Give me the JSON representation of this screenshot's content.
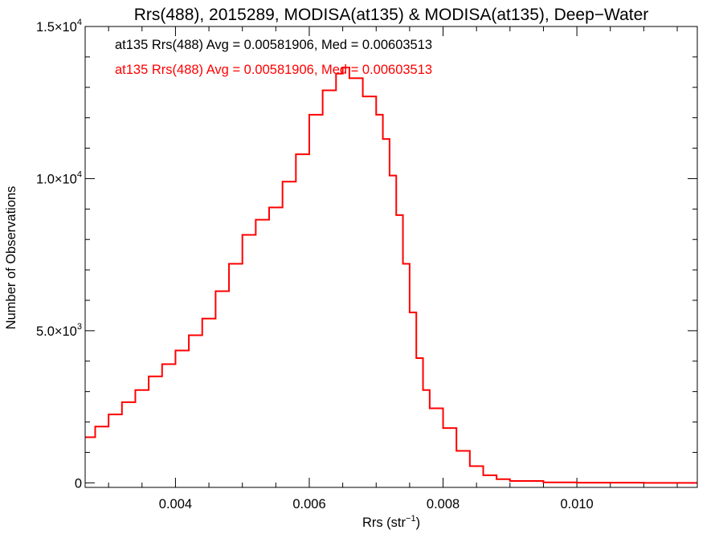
{
  "chart_data": {
    "type": "line",
    "title": "Rrs(488), 2015289, MODISA(at135) & MODISA(at135), Deep−Water",
    "xlabel": "Rrs (str",
    "xlabel_sup": "−1",
    "xlabel_end": ")",
    "ylabel": "Number of Observations",
    "xlim": [
      0.00265,
      0.0118
    ],
    "ylim": [
      -150,
      15000
    ],
    "x_ticks": [
      {
        "value": 0.004,
        "label": "0.004"
      },
      {
        "value": 0.006,
        "label": "0.006"
      },
      {
        "value": 0.008,
        "label": "0.008"
      },
      {
        "value": 0.01,
        "label": "0.010"
      }
    ],
    "x_minor_ticks": [
      0.003,
      0.0035,
      0.0045,
      0.005,
      0.0055,
      0.0065,
      0.007,
      0.0075,
      0.0085,
      0.009,
      0.0095,
      0.0105,
      0.011,
      0.0115
    ],
    "y_ticks": [
      {
        "value": 0,
        "base": "0",
        "exp": ""
      },
      {
        "value": 5000,
        "base": "5.0×10",
        "exp": "3"
      },
      {
        "value": 10000,
        "base": "1.0×10",
        "exp": "4"
      },
      {
        "value": 15000,
        "base": "1.5×10",
        "exp": "4"
      }
    ],
    "y_minor_ticks": [
      1000,
      2000,
      3000,
      4000,
      6000,
      7000,
      8000,
      9000,
      11000,
      12000,
      13000,
      14000
    ],
    "annotations": [
      {
        "text": "at135 Rrs(488) Avg = 0.00581906, Med = 0.00603513",
        "color": "#000000"
      },
      {
        "text": "at135 Rrs(488) Avg = 0.00581906, Med = 0.00603513",
        "color": "#ff0000"
      }
    ],
    "series": [
      {
        "color": "#ff0000",
        "points": [
          [
            0.00265,
            1500
          ],
          [
            0.0028,
            1850
          ],
          [
            0.003,
            2250
          ],
          [
            0.0032,
            2650
          ],
          [
            0.0034,
            3050
          ],
          [
            0.0036,
            3500
          ],
          [
            0.0038,
            3900
          ],
          [
            0.004,
            4350
          ],
          [
            0.0042,
            4850
          ],
          [
            0.0044,
            5400
          ],
          [
            0.0046,
            6300
          ],
          [
            0.0048,
            7200
          ],
          [
            0.005,
            8150
          ],
          [
            0.0052,
            8650
          ],
          [
            0.0054,
            9050
          ],
          [
            0.0056,
            9900
          ],
          [
            0.0058,
            10800
          ],
          [
            0.006,
            12100
          ],
          [
            0.0062,
            12900
          ],
          [
            0.0064,
            13450
          ],
          [
            0.0065,
            13650
          ],
          [
            0.0066,
            13300
          ],
          [
            0.0068,
            12700
          ],
          [
            0.007,
            12100
          ],
          [
            0.0071,
            11300
          ],
          [
            0.0072,
            10100
          ],
          [
            0.0073,
            8800
          ],
          [
            0.0074,
            7200
          ],
          [
            0.0075,
            5600
          ],
          [
            0.0076,
            4100
          ],
          [
            0.0077,
            3050
          ],
          [
            0.0078,
            2450
          ],
          [
            0.008,
            1800
          ],
          [
            0.0082,
            1050
          ],
          [
            0.0084,
            550
          ],
          [
            0.0086,
            250
          ],
          [
            0.0088,
            120
          ],
          [
            0.009,
            60
          ],
          [
            0.0095,
            15
          ],
          [
            0.01,
            5
          ],
          [
            0.011,
            0
          ],
          [
            0.0118,
            0
          ]
        ]
      }
    ]
  }
}
